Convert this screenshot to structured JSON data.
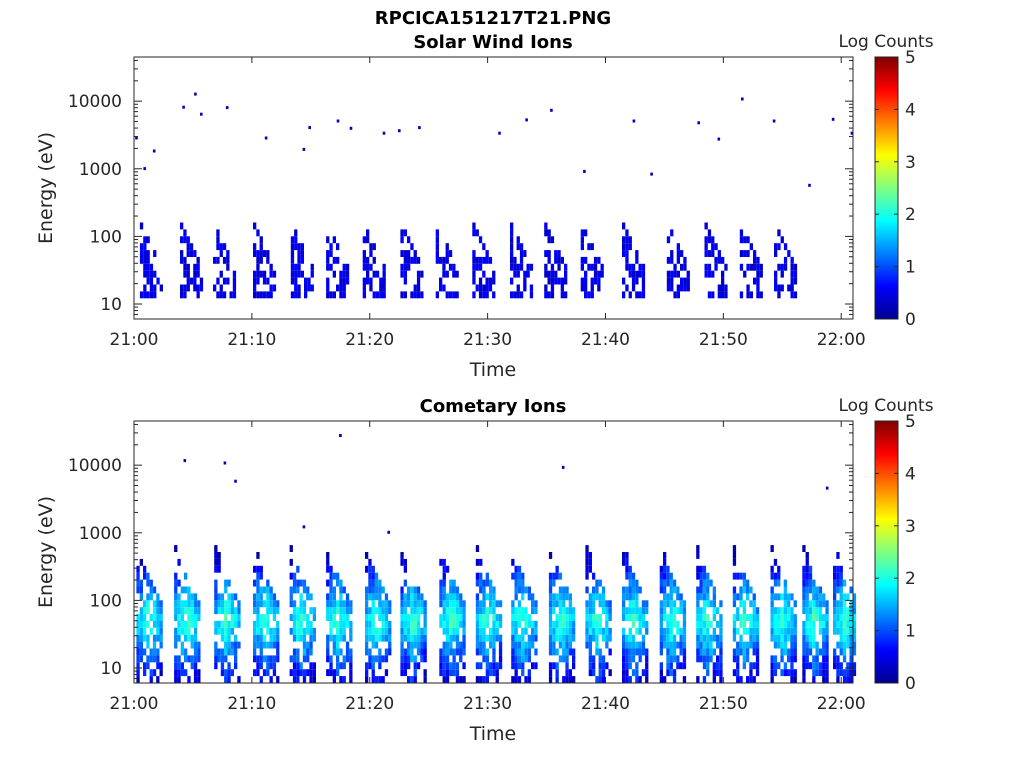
{
  "figure_title": "RPCICA151217T21.PNG",
  "chart_data": [
    {
      "type": "heatmap",
      "title": "Solar Wind Ions",
      "xlabel": "Time",
      "ylabel": "Energy (eV)",
      "yscale": "log",
      "ylim": [
        6,
        45000
      ],
      "xlim": [
        "21:00",
        "22:01"
      ],
      "xticks": [
        "21:00",
        "21:10",
        "21:20",
        "21:30",
        "21:40",
        "21:50",
        "22:00"
      ],
      "yticks": [
        10,
        100,
        1000,
        10000
      ],
      "ytick_labels": [
        "10",
        "100",
        "1000",
        "10000"
      ],
      "colorbar": {
        "label": "Log Counts",
        "range": [
          0,
          5
        ],
        "ticks": [
          "0",
          "1",
          "2",
          "3",
          "4",
          "5"
        ],
        "colormap": "jet"
      },
      "bursts_start_minutes": [
        0.5,
        3.9,
        6.7,
        10.1,
        13.3,
        16.3,
        19.4,
        22.6,
        25.6,
        28.7,
        31.9,
        34.8,
        37.9,
        41.4,
        45.2,
        48.4,
        51.4,
        54.3
      ],
      "burst_energy_range_eV": [
        12,
        150
      ],
      "typical_log_counts": 0.3,
      "scattered_high_energy_points": [
        {
          "t": 0.1,
          "e": 2800
        },
        {
          "t": 0.8,
          "e": 990
        },
        {
          "t": 1.6,
          "e": 1800
        },
        {
          "t": 4.1,
          "e": 8000
        },
        {
          "t": 5.1,
          "e": 12500
        },
        {
          "t": 5.6,
          "e": 6300
        },
        {
          "t": 7.8,
          "e": 7900
        },
        {
          "t": 11.1,
          "e": 2800
        },
        {
          "t": 14.3,
          "e": 1900
        },
        {
          "t": 14.8,
          "e": 4000
        },
        {
          "t": 17.2,
          "e": 5000
        },
        {
          "t": 18.3,
          "e": 3900
        },
        {
          "t": 21.1,
          "e": 3300
        },
        {
          "t": 22.4,
          "e": 3600
        },
        {
          "t": 24.1,
          "e": 4000
        },
        {
          "t": 30.9,
          "e": 3300
        },
        {
          "t": 33.2,
          "e": 5200
        },
        {
          "t": 35.3,
          "e": 7200
        },
        {
          "t": 42.3,
          "e": 5000
        },
        {
          "t": 47.8,
          "e": 4700
        },
        {
          "t": 49.5,
          "e": 2700
        },
        {
          "t": 51.5,
          "e": 10600
        },
        {
          "t": 54.2,
          "e": 5000
        },
        {
          "t": 59.2,
          "e": 5300
        },
        {
          "t": 60.8,
          "e": 3300
        },
        {
          "t": 38.1,
          "e": 900
        },
        {
          "t": 43.8,
          "e": 820
        },
        {
          "t": 57.2,
          "e": 560
        }
      ]
    },
    {
      "type": "heatmap",
      "title": "Cometary Ions",
      "xlabel": "Time",
      "ylabel": "Energy (eV)",
      "yscale": "log",
      "ylim": [
        6,
        45000
      ],
      "xlim": [
        "21:00",
        "22:01"
      ],
      "xticks": [
        "21:00",
        "21:10",
        "21:20",
        "21:30",
        "21:40",
        "21:50",
        "22:00"
      ],
      "yticks": [
        10,
        100,
        1000,
        10000
      ],
      "ytick_labels": [
        "10",
        "100",
        "1000",
        "10000"
      ],
      "colorbar": {
        "label": "Log Counts",
        "range": [
          0,
          5
        ],
        "ticks": [
          "0",
          "1",
          "2",
          "3",
          "4",
          "5"
        ],
        "colormap": "jet"
      },
      "bursts_start_minutes": [
        0.2,
        3.4,
        6.8,
        10.1,
        13.2,
        16.3,
        19.6,
        22.6,
        25.9,
        29.0,
        32.0,
        35.2,
        38.3,
        41.4,
        44.6,
        47.7,
        50.8,
        54.0,
        56.7,
        59.3
      ],
      "burst_energy_range_eV": [
        6,
        600
      ],
      "peak_energy_eV": 50,
      "peak_log_counts": 2.2,
      "scattered_high_energy_points": [
        {
          "t": 4.2,
          "e": 11500
        },
        {
          "t": 7.6,
          "e": 10600
        },
        {
          "t": 8.5,
          "e": 5700
        },
        {
          "t": 17.4,
          "e": 27000
        },
        {
          "t": 36.3,
          "e": 9100
        },
        {
          "t": 58.7,
          "e": 4500
        },
        {
          "t": 14.3,
          "e": 1200
        },
        {
          "t": 21.5,
          "e": 1000
        }
      ]
    }
  ]
}
